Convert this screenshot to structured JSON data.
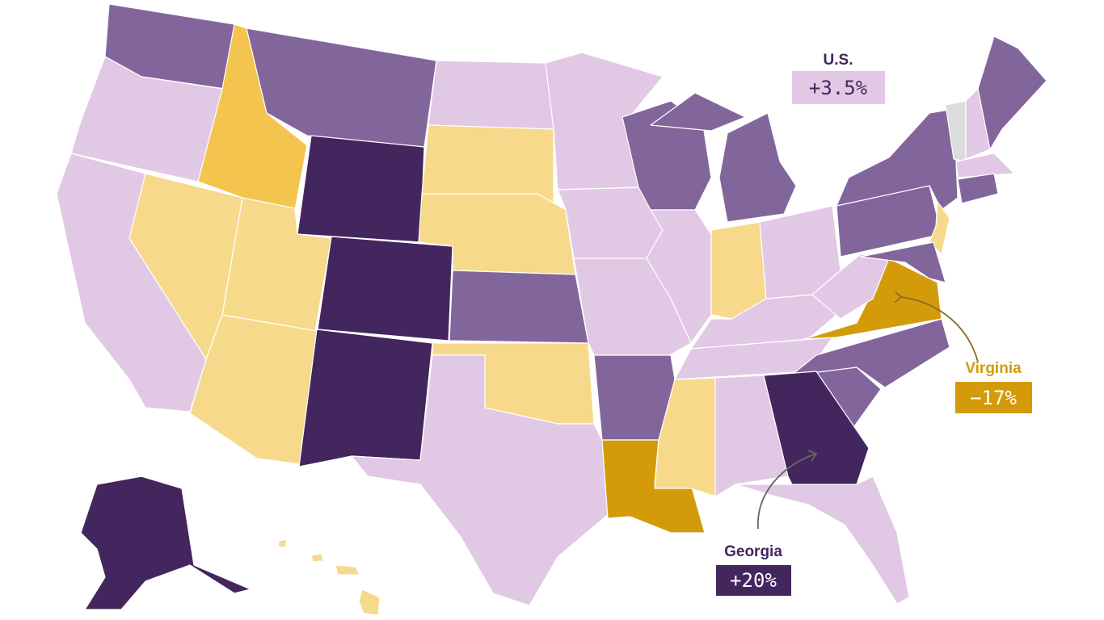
{
  "annotations": [
    {
      "name": "U.S.",
      "label": "+3.5%"
    },
    {
      "name": "Virginia",
      "label": "−17%"
    },
    {
      "name": "Georgia",
      "label": "+20%"
    }
  ]
}
